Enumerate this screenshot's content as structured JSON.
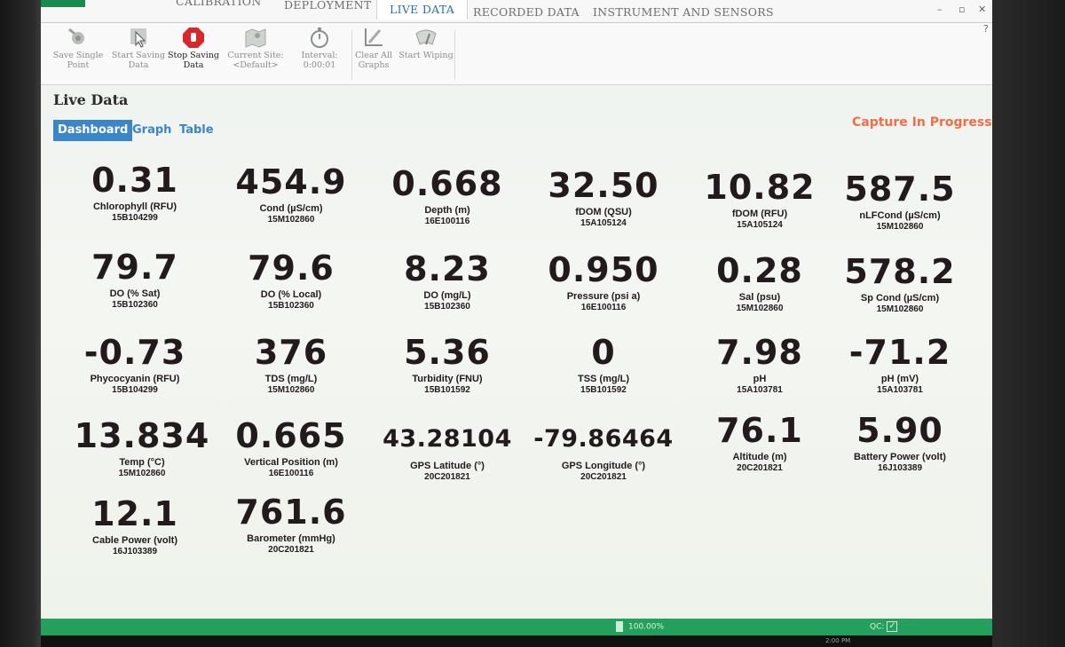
{
  "tabs": [
    {
      "label": "CALIBRATION"
    },
    {
      "label": "DEPLOYMENT"
    },
    {
      "label": "LIVE DATA"
    },
    {
      "label": "RECORDED DATA"
    },
    {
      "label": "INSTRUMENT AND SENSORS"
    }
  ],
  "window_controls": {
    "minimize": "–",
    "restore": "▫",
    "close": "✕",
    "help": "?"
  },
  "ribbon": {
    "save_single_point": "Save Single Point",
    "start_saving": "Start Saving Data",
    "stop_saving": "Stop Saving Data",
    "current_site_label": "Current Site:",
    "current_site_value": "<Default>",
    "interval_label": "Interval:",
    "interval_value": "0:00:01",
    "clear_graphs": "Clear All Graphs",
    "start_wiping": "Start Wiping"
  },
  "section_title": "Live Data",
  "view_tabs": {
    "dashboard": "Dashboard",
    "graph": "Graph",
    "table": "Table"
  },
  "capture_status": "Capture In Progress",
  "tiles": [
    {
      "value": "0.31",
      "label": "Chlorophyll (RFU)",
      "serial": "15B104299"
    },
    {
      "value": "454.9",
      "label": "Cond (µS/cm)",
      "serial": "15M102860"
    },
    {
      "value": "0.668",
      "label": "Depth (m)",
      "serial": "16E100116"
    },
    {
      "value": "32.50",
      "label": "fDOM (QSU)",
      "serial": "15A105124"
    },
    {
      "value": "10.82",
      "label": "fDOM (RFU)",
      "serial": "15A105124"
    },
    {
      "value": "587.5",
      "label": "nLFCond (µS/cm)",
      "serial": "15M102860"
    },
    {
      "value": "79.7",
      "label": "DO (% Sat)",
      "serial": "15B102360"
    },
    {
      "value": "79.6",
      "label": "DO (% Local)",
      "serial": "15B102360"
    },
    {
      "value": "8.23",
      "label": "DO (mg/L)",
      "serial": "15B102360"
    },
    {
      "value": "0.950",
      "label": "Pressure (psi a)",
      "serial": "16E100116"
    },
    {
      "value": "0.28",
      "label": "Sal (psu)",
      "serial": "15M102860"
    },
    {
      "value": "578.2",
      "label": "Sp Cond (µS/cm)",
      "serial": "15M102860"
    },
    {
      "value": "-0.73",
      "label": "Phycocyanin (RFU)",
      "serial": "15B104299"
    },
    {
      "value": "376",
      "label": "TDS (mg/L)",
      "serial": "15M102860"
    },
    {
      "value": "5.36",
      "label": "Turbidity (FNU)",
      "serial": "15B101592"
    },
    {
      "value": "0",
      "label": "TSS (mg/L)",
      "serial": "15B101592"
    },
    {
      "value": "7.98",
      "label": "pH",
      "serial": "15A103781"
    },
    {
      "value": "-71.2",
      "label": "pH (mV)",
      "serial": "15A103781"
    },
    {
      "value": "13.834",
      "label": "Temp (°C)",
      "serial": "15M102860"
    },
    {
      "value": "0.665",
      "label": "Vertical Position (m)",
      "serial": "16E100116"
    },
    {
      "value": "43.28104",
      "label": "GPS Latitude (°)",
      "serial": "20C201821"
    },
    {
      "value": "-79.86464",
      "label": "GPS Longitude (°)",
      "serial": "20C201821"
    },
    {
      "value": "76.1",
      "label": "Altitude (m)",
      "serial": "20C201821"
    },
    {
      "value": "5.90",
      "label": "Battery Power (volt)",
      "serial": "16J103389"
    },
    {
      "value": "12.1",
      "label": "Cable Power (volt)",
      "serial": "16J103389"
    },
    {
      "value": "761.6",
      "label": "Barometer (mmHg)",
      "serial": "20C201821"
    }
  ],
  "status_bar": {
    "battery": "100.00%",
    "qc_label": "QC:",
    "qc_check": "✓"
  },
  "taskbar_time": "2:00 PM",
  "colors": {
    "accent_blue": "#3b86c8",
    "capture_orange": "#f06e48",
    "status_green": "#23a15c",
    "value_text": "#231a1e"
  }
}
